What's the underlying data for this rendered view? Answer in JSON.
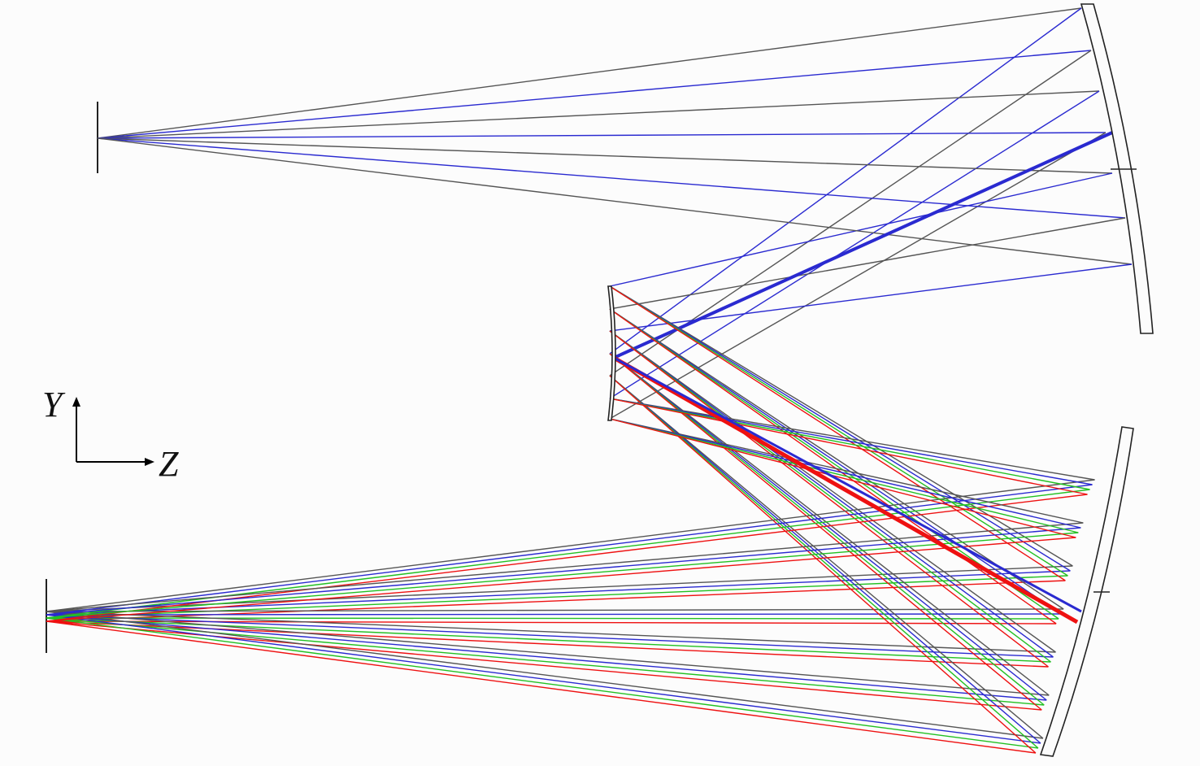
{
  "axes": {
    "y_label": "Y",
    "z_label": "Z"
  },
  "colors": {
    "outline": "#222222",
    "ray_gray": "#555555",
    "ray_blue": "#2a2ad0",
    "ray_green": "#22c022",
    "ray_red": "#ee1111",
    "ray_teal": "#3a8a9a"
  }
}
